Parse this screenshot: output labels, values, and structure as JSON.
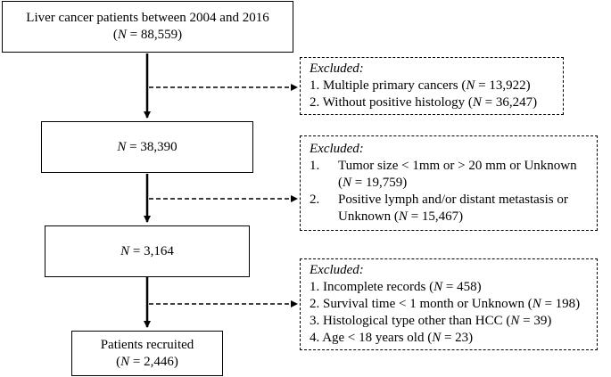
{
  "main_boxes": [
    {
      "line1": "Liver cancer patients between 2004 and 2016",
      "line2_pre": "(",
      "n_var": "N",
      "line2_post": " = 88,559)"
    },
    {
      "n_var": "N",
      "line1_post": " = 38,390"
    },
    {
      "n_var": "N",
      "line1_post": " = 3,164"
    },
    {
      "line1": "Patients recruited",
      "line2_pre": "(",
      "n_var": "N",
      "line2_post": " = 2,446)"
    }
  ],
  "exclusions": [
    {
      "header": "Excluded:",
      "items": [
        {
          "num": "1.",
          "pre": "Multiple primary cancers (",
          "n_var": "N",
          "post": " = 13,922)"
        },
        {
          "num": "2.",
          "pre": "Without positive histology (",
          "n_var": "N",
          "post": " = 36,247)"
        }
      ]
    },
    {
      "header": "Excluded:",
      "items": [
        {
          "num": "1.",
          "pre": "Tumor size < 1mm or > 20 mm or Unknown (",
          "n_var": "N",
          "post": " = 19,759)"
        },
        {
          "num": "2.",
          "pre": "Positive lymph and/or distant metastasis or Unknown (",
          "n_var": "N",
          "post": " = 15,467)"
        }
      ]
    },
    {
      "header": "Excluded:",
      "items": [
        {
          "num": "1.",
          "pre": "Incomplete records (",
          "n_var": "N",
          "post": " = 458)"
        },
        {
          "num": "2.",
          "pre": "Survival time < 1 month or Unknown (",
          "n_var": "N",
          "post": " = 198)"
        },
        {
          "num": "3.",
          "pre": "Histological type other than HCC (",
          "n_var": "N",
          "post": " = 39)"
        },
        {
          "num": "4.",
          "pre": "Age < 18 years old (",
          "n_var": "N",
          "post": " = 23)"
        }
      ]
    }
  ]
}
